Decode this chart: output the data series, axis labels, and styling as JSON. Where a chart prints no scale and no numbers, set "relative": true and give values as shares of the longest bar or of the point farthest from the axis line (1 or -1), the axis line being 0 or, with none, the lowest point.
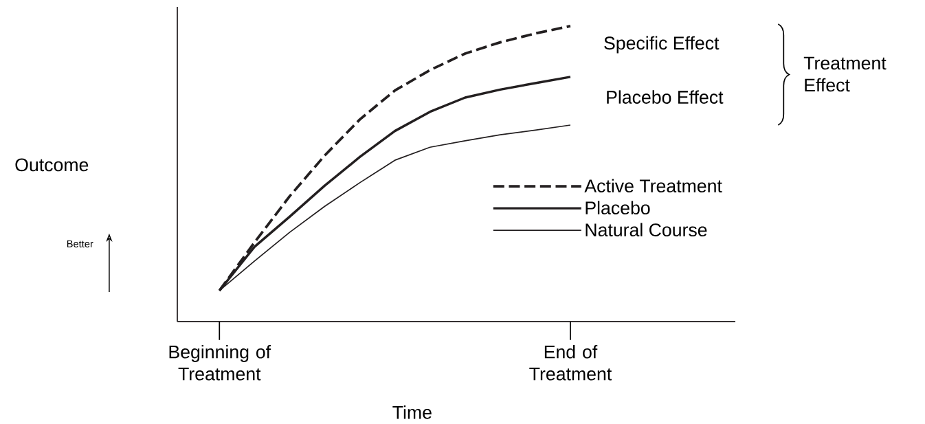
{
  "chart_data": {
    "type": "line",
    "relative": true,
    "xlabel": "Time",
    "ylabel": "Outcome",
    "categories": [
      "Beginning of Treatment",
      null,
      null,
      null,
      null,
      null,
      null,
      null,
      null,
      null,
      "End of Treatment"
    ],
    "tick_labels": "x",
    "legend": "right",
    "annotations": [
      "Specific Effect",
      "Placebo Effect",
      "Treatment Effect",
      "Better"
    ],
    "series": [
      {
        "name": "Active Treatment",
        "color": "#231f20",
        "line_style": "dashed",
        "values": [
          0.105,
          0.268,
          0.424,
          0.562,
          0.684,
          0.782,
          0.851,
          0.907,
          0.945,
          0.975,
          1
        ]
      },
      {
        "name": "Placebo",
        "color": "#231f20",
        "line_style": "solid",
        "values": [
          0.105,
          0.253,
          0.355,
          0.46,
          0.557,
          0.645,
          0.71,
          0.758,
          0.785,
          0.807,
          0.828
        ]
      },
      {
        "name": "Natural Course",
        "color": "#231f20",
        "line_style": "solid",
        "values": [
          0.105,
          0.205,
          0.302,
          0.39,
          0.47,
          0.546,
          0.59,
          0.612,
          0.632,
          0.648,
          0.665
        ]
      }
    ]
  }
}
